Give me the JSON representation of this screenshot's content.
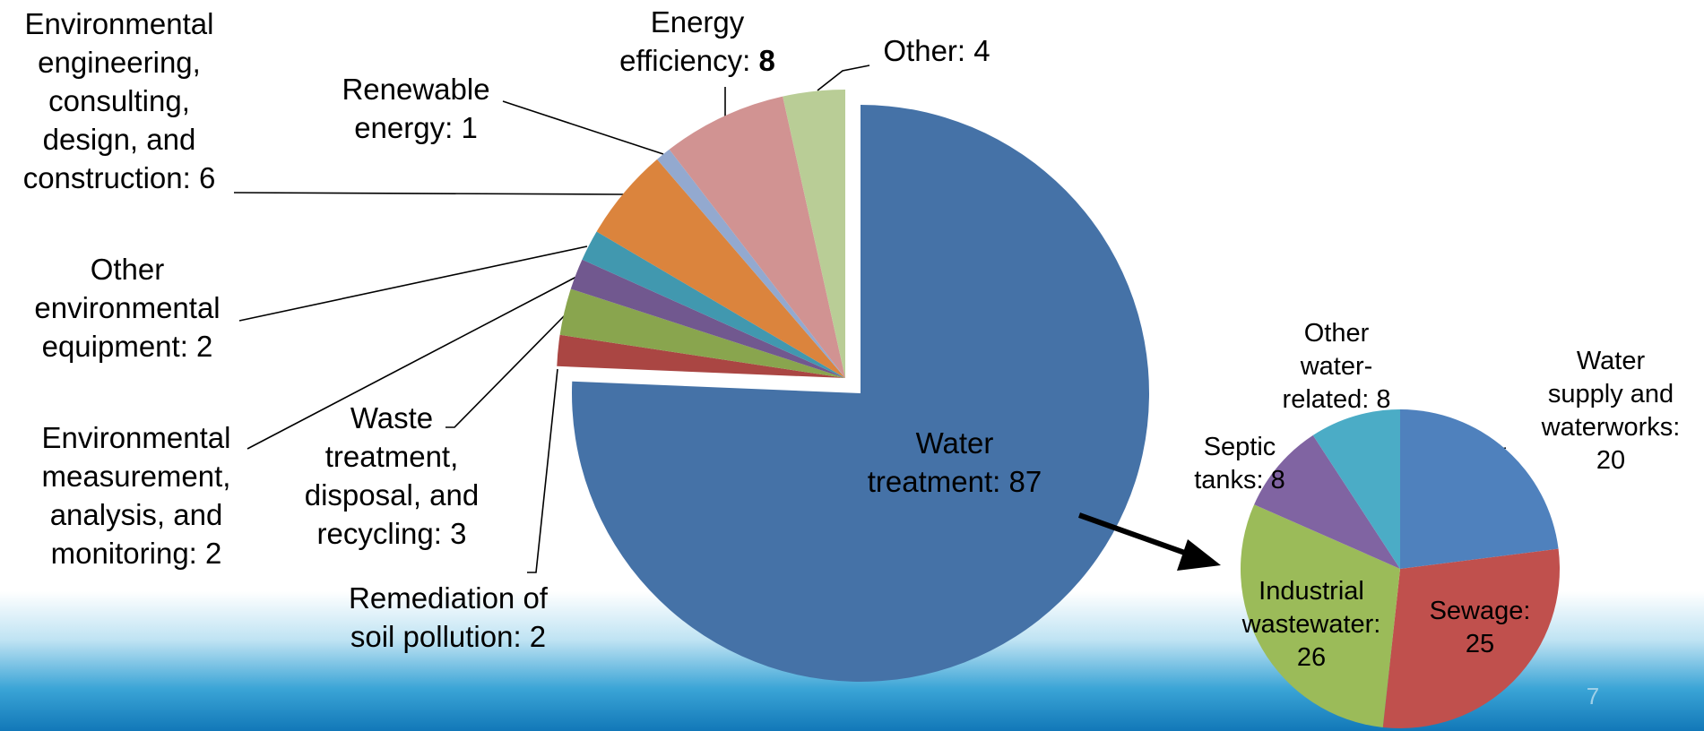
{
  "chart_data": [
    {
      "type": "pie",
      "labels": [
        "Water treatment: 87",
        "Remediation of soil pollution: 2",
        "Waste treatment, disposal, and recycling: 3",
        "Environmental measurement, analysis, and monitoring: 2",
        "Other environmental equipment: 2",
        "Environmental engineering, consulting, design, and construction: 6",
        "Renewable energy: 1",
        "Energy efficiency: 8",
        "Other: 4"
      ],
      "values": [
        87,
        2,
        3,
        2,
        2,
        6,
        1,
        8,
        4
      ],
      "colors": [
        "#4572a7",
        "#aa4643",
        "#89a54e",
        "#71588f",
        "#4198af",
        "#db843d",
        "#93a9cf",
        "#d19392",
        "#b9cd96"
      ]
    },
    {
      "type": "pie",
      "labels": [
        "Water supply and waterworks: 20",
        "Sewage: 25",
        "Industrial wastewater: 26",
        "Septic tanks: 8",
        "Other water-related: 8"
      ],
      "values": [
        20,
        25,
        26,
        8,
        8
      ],
      "colors": [
        "#4f81bd",
        "#c0504d",
        "#9bbb59",
        "#8064a2",
        "#4bacc6"
      ]
    }
  ],
  "page_number": "7"
}
